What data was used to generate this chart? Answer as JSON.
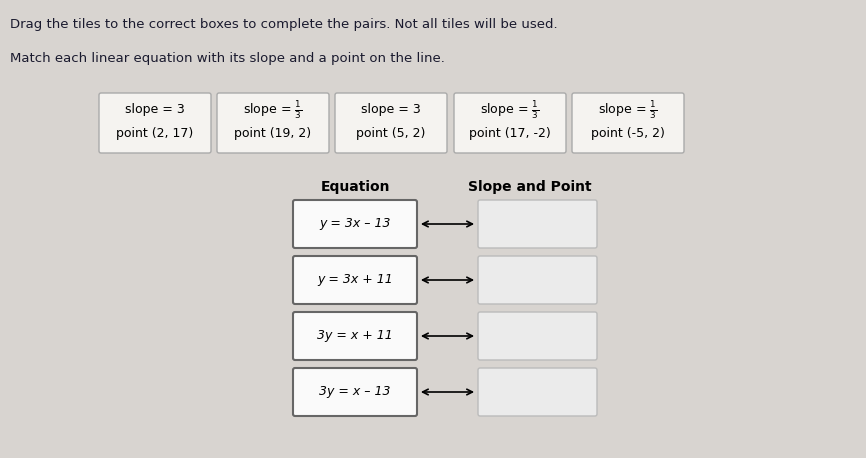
{
  "bg_color": "#d8d4d0",
  "tile_area_bg": "#dedad6",
  "title1": "Drag the tiles to the correct boxes to complete the pairs. Not all tiles will be used.",
  "title2": "Match each linear equation with its slope and a point on the line.",
  "tile_fracs_display": [
    "3",
    "\\frac{1}{3}",
    "3",
    "\\frac{1}{3}",
    "\\frac{1}{3}"
  ],
  "tile_points": [
    "(2, 17)",
    "(19, 2)",
    "(5, 2)",
    "(17, -2)",
    "(-5, 2)"
  ],
  "col_header1": "Equation",
  "col_header2": "Slope and Point",
  "equations": [
    "y = 3x – 13",
    "y = 3x + 11",
    "3y = x + 11",
    "3y = x – 13"
  ],
  "tile_box_color": "#f5f3f0",
  "eq_box_color": "#fafafa",
  "ans_box_color": "#ebebeb",
  "border_color_tile": "#aaaaaa",
  "border_color_eq": "#666666",
  "border_color_ans": "#bbbbbb",
  "font_size_title1": 9.5,
  "font_size_title2": 9.5,
  "font_size_tile": 9,
  "font_size_eq": 9,
  "font_size_header": 10
}
